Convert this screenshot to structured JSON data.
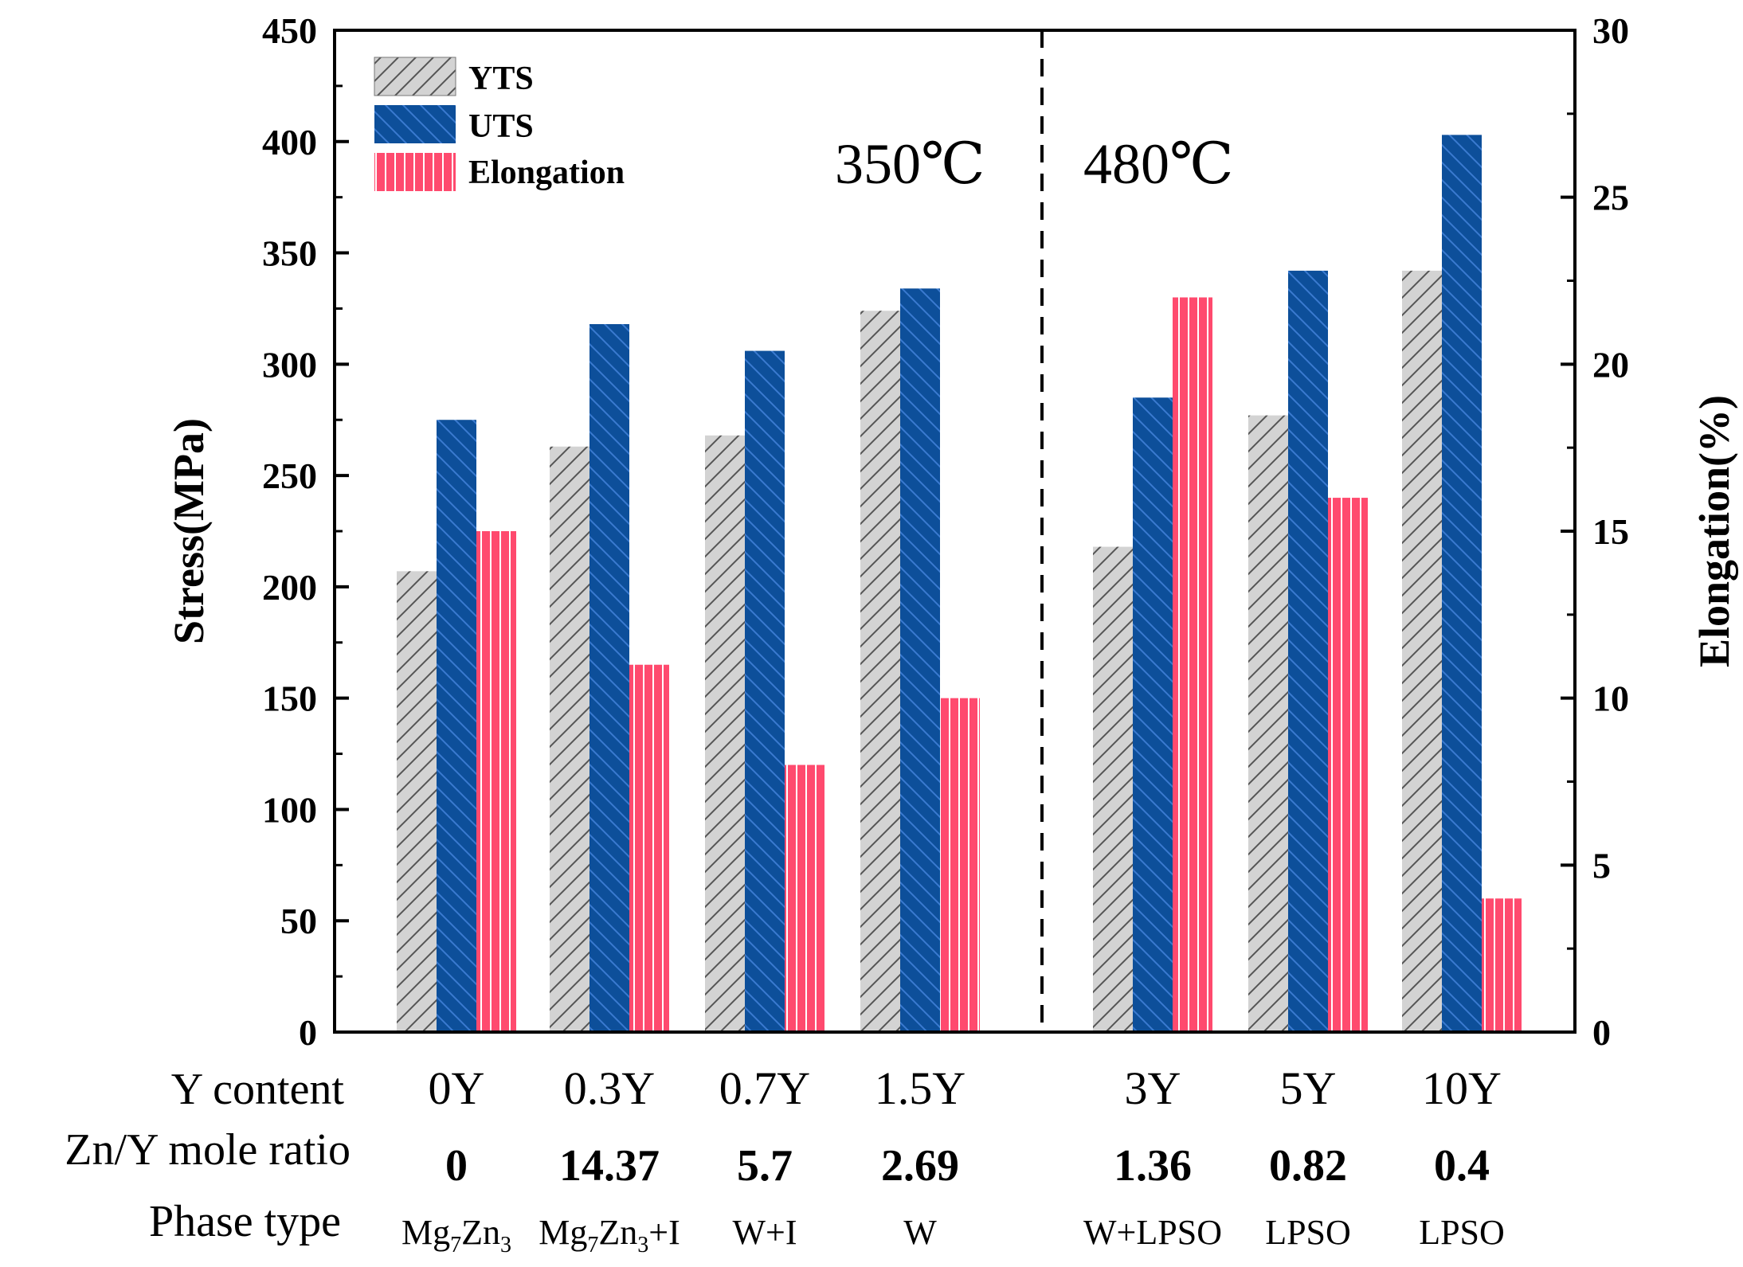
{
  "chart_data": {
    "type": "bar",
    "title": "",
    "ylabel": "Stress(MPa)",
    "y2label": "Elongation(%)",
    "ylim": [
      0,
      450
    ],
    "y2lim": [
      0,
      30
    ],
    "yticks": [
      "0",
      "50",
      "100",
      "150",
      "200",
      "250",
      "300",
      "350",
      "400",
      "450"
    ],
    "y2ticks": [
      "0",
      "5",
      "10",
      "15",
      "20",
      "25",
      "30"
    ],
    "categories": [
      "0Y",
      "0.3Y",
      "0.7Y",
      "1.5Y",
      "3Y",
      "5Y",
      "10Y"
    ],
    "series": [
      {
        "name": "YTS",
        "axis": "left",
        "values": [
          207,
          263,
          268,
          324,
          218,
          277,
          342
        ]
      },
      {
        "name": "UTS",
        "axis": "left",
        "values": [
          275,
          318,
          306,
          334,
          285,
          342,
          403
        ]
      },
      {
        "name": "Elongation",
        "axis": "right",
        "values": [
          15,
          11,
          8,
          10,
          22,
          16,
          4
        ]
      }
    ],
    "group_labels": [
      "350℃",
      "480℃"
    ],
    "row_titles": {
      "y_content": "Y content",
      "ratio": "Zn/Y mole ratio",
      "phase": "Phase type"
    },
    "zn_y_ratio": [
      "0",
      "14.37",
      "5.7",
      "2.69",
      "1.36",
      "0.82",
      "0.4"
    ],
    "phase_type": [
      {
        "main": "Mg",
        "sub1": "7",
        "mid": "Zn",
        "sub2": "3",
        "tail": ""
      },
      {
        "main": "Mg",
        "sub1": "7",
        "mid": "Zn",
        "sub2": "3",
        "tail": "+I"
      },
      {
        "main": "W+I",
        "sub1": "",
        "mid": "",
        "sub2": "",
        "tail": ""
      },
      {
        "main": "W",
        "sub1": "",
        "mid": "",
        "sub2": "",
        "tail": ""
      },
      {
        "main": "W+LPSO",
        "sub1": "",
        "mid": "",
        "sub2": "",
        "tail": ""
      },
      {
        "main": "LPSO",
        "sub1": "",
        "mid": "",
        "sub2": "",
        "tail": ""
      },
      {
        "main": "LPSO",
        "sub1": "",
        "mid": "",
        "sub2": "",
        "tail": ""
      }
    ],
    "colors": {
      "YTS": "#d3d3d3",
      "UTS": "#0d4f9a",
      "Elongation": "#ff4a6e",
      "YTS_hatch": "#555555",
      "UTS_hatch": "#3a7ad0",
      "Elongation_hatch": "#ffffff"
    }
  }
}
